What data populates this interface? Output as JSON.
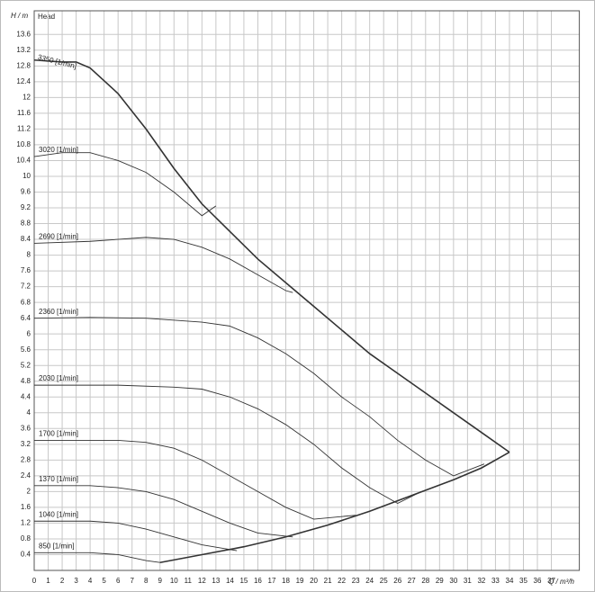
{
  "chart_data": {
    "type": "line",
    "title": "Head",
    "ylabel": "H / m",
    "xlabel": "Q / m³/h",
    "xlim": [
      0,
      39
    ],
    "ylim": [
      0,
      14.2
    ],
    "xticks": [
      0,
      1,
      2,
      3,
      4,
      5,
      6,
      7,
      8,
      9,
      10,
      11,
      12,
      13,
      14,
      15,
      16,
      17,
      18,
      19,
      20,
      21,
      22,
      23,
      24,
      25,
      26,
      27,
      28,
      29,
      30,
      31,
      32,
      33,
      34,
      35,
      36,
      37
    ],
    "yticks": [
      0.4,
      0.8,
      1.2,
      1.6,
      2,
      2.4,
      2.8,
      3.2,
      3.6,
      4,
      4.4,
      4.8,
      5.2,
      5.6,
      6,
      6.4,
      6.8,
      7.2,
      7.6,
      8,
      8.4,
      8.8,
      9.2,
      9.6,
      10,
      10.4,
      10.8,
      11.2,
      11.6,
      12,
      12.4,
      12.8,
      13.2,
      13.6
    ],
    "grid": true,
    "color": "#333333",
    "series": [
      {
        "name": "3350 [1/min]",
        "x": [
          0,
          2,
          3,
          4,
          6,
          8,
          10,
          12,
          14,
          16,
          18,
          20,
          22,
          24,
          26,
          28,
          30,
          32,
          34
        ],
        "values": [
          12.95,
          12.9,
          12.9,
          12.75,
          12.1,
          11.2,
          10.2,
          9.3,
          8.6,
          7.9,
          7.3,
          6.7,
          6.1,
          5.5,
          5.0,
          4.5,
          4.0,
          3.5,
          3.0
        ]
      },
      {
        "name": "3020 [1/min]",
        "x": [
          0,
          2,
          4,
          6,
          8,
          10,
          12,
          13
        ],
        "values": [
          10.5,
          10.6,
          10.6,
          10.4,
          10.1,
          9.6,
          9.0,
          9.25
        ]
      },
      {
        "name": "2690 [1/min]",
        "x": [
          0,
          4,
          8,
          10,
          12,
          14,
          16,
          18,
          18.5
        ],
        "values": [
          8.3,
          8.35,
          8.45,
          8.4,
          8.2,
          7.9,
          7.5,
          7.1,
          7.05
        ]
      },
      {
        "name": "2360 [1/min]",
        "x": [
          0,
          4,
          8,
          12,
          14,
          16,
          18,
          20,
          22,
          24,
          26,
          28,
          30,
          32.2
        ],
        "values": [
          6.4,
          6.42,
          6.4,
          6.3,
          6.2,
          5.9,
          5.5,
          5.0,
          4.4,
          3.9,
          3.3,
          2.8,
          2.4,
          2.7
        ]
      },
      {
        "name": "2030 [1/min]",
        "x": [
          0,
          6,
          10,
          12,
          14,
          16,
          18,
          20,
          22,
          24,
          26,
          27.7
        ],
        "values": [
          4.7,
          4.7,
          4.65,
          4.6,
          4.4,
          4.1,
          3.7,
          3.2,
          2.6,
          2.1,
          1.7,
          2.0
        ]
      },
      {
        "name": "1700 [1/min]",
        "x": [
          0,
          6,
          8,
          10,
          12,
          14,
          16,
          18,
          20,
          23
        ],
        "values": [
          3.3,
          3.3,
          3.25,
          3.1,
          2.8,
          2.4,
          2.0,
          1.6,
          1.3,
          1.4
        ]
      },
      {
        "name": "1370 [1/min]",
        "x": [
          0,
          4,
          6,
          8,
          10,
          12,
          14,
          16,
          18.5
        ],
        "values": [
          2.15,
          2.15,
          2.1,
          2.0,
          1.8,
          1.5,
          1.2,
          0.95,
          0.85
        ]
      },
      {
        "name": "1040 [1/min]",
        "x": [
          0,
          4,
          6,
          8,
          10,
          12,
          14.5
        ],
        "values": [
          1.25,
          1.25,
          1.2,
          1.05,
          0.85,
          0.65,
          0.5
        ]
      },
      {
        "name": "850 [1/min]",
        "x": [
          0,
          4,
          6,
          8,
          9
        ],
        "values": [
          0.45,
          0.45,
          0.4,
          0.25,
          0.2
        ]
      },
      {
        "name": null,
        "x": [
          9,
          12,
          15,
          18,
          21,
          24,
          27,
          30,
          32,
          34
        ],
        "values": [
          0.2,
          0.4,
          0.6,
          0.85,
          1.15,
          1.5,
          1.9,
          2.3,
          2.6,
          3.0
        ]
      }
    ]
  }
}
